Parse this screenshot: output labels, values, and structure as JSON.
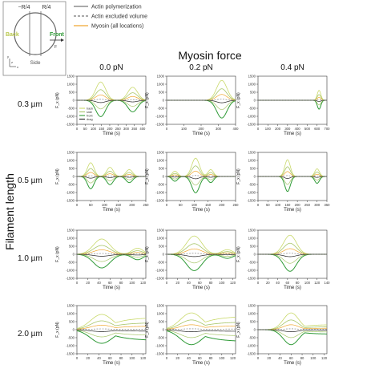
{
  "figure": {
    "column_header": "Myosin force",
    "row_header": "Filament length",
    "columns": [
      "0.0 pN",
      "0.2 pN",
      "0.4 pN"
    ],
    "rows": [
      "0.3 µm",
      "0.5 µm",
      "1.0 µm",
      "2.0 µm"
    ],
    "ylabel": "F_x (pN)",
    "xlabel": "Time (s)"
  },
  "schematic": {
    "back": "Back",
    "front": "Front",
    "minus_r4": "−R/4",
    "r4": "R/4",
    "side": "Side",
    "axis_y": "y",
    "axis_x": "x",
    "axis_z": "z",
    "force_label": "F"
  },
  "legend_top": [
    {
      "label": "Actin polymerization",
      "color": "#555555",
      "dash": "solid"
    },
    {
      "label": "Actin excluded volume",
      "color": "#555555",
      "dash": "dashed"
    },
    {
      "label": "Myosin (all locations)",
      "color": "#f0a830",
      "dash": "solid"
    }
  ],
  "legend_inset": [
    "back",
    "side",
    "front",
    "drag"
  ],
  "colors": {
    "back": "#c9d96a",
    "side": "#a8c66a",
    "front": "#2e9a36",
    "drag": "#222222",
    "myosin": "#f0a830",
    "actin": "#777777"
  },
  "chart_data": [
    {
      "type": "line",
      "row": 0,
      "col": 0,
      "xlim": [
        0,
        420
      ],
      "ylim": [
        -1500,
        1500
      ],
      "xticks": [
        0,
        50,
        100,
        150,
        200,
        250,
        300,
        350,
        400
      ],
      "yticks": [
        -1500,
        -1000,
        -500,
        0,
        500,
        1000,
        1500
      ],
      "events": [
        {
          "t": 145,
          "amp": 1200,
          "w": 30
        },
        {
          "t": 340,
          "amp": 850,
          "w": 30
        }
      ]
    },
    {
      "type": "line",
      "row": 0,
      "col": 1,
      "xlim": [
        0,
        400
      ],
      "ylim": [
        -1500,
        1500
      ],
      "xticks": [
        0,
        100,
        200,
        300,
        400
      ],
      "yticks": [
        -1500,
        -1000,
        -500,
        0,
        500,
        1000,
        1500
      ],
      "events": [
        {
          "t": 320,
          "amp": 1300,
          "w": 30
        }
      ]
    },
    {
      "type": "line",
      "row": 0,
      "col": 2,
      "xlim": [
        0,
        700
      ],
      "ylim": [
        -1500,
        1500
      ],
      "xticks": [
        0,
        100,
        200,
        300,
        400,
        500,
        600,
        700
      ],
      "yticks": [
        -1500,
        -1000,
        -500,
        0,
        500,
        1000,
        1500
      ],
      "events": [
        {
          "t": 620,
          "amp": 650,
          "w": 18
        }
      ]
    },
    {
      "type": "line",
      "row": 1,
      "col": 0,
      "xlim": [
        0,
        250
      ],
      "ylim": [
        -1500,
        1500
      ],
      "xticks": [
        0,
        50,
        100,
        150,
        200,
        250
      ],
      "yticks": [
        -1500,
        -1000,
        -500,
        0,
        500,
        1000,
        1500
      ],
      "events": [
        {
          "t": 50,
          "amp": 900,
          "w": 12
        },
        {
          "t": 120,
          "amp": 600,
          "w": 12
        },
        {
          "t": 190,
          "amp": 450,
          "w": 12
        }
      ]
    },
    {
      "type": "line",
      "row": 1,
      "col": 1,
      "xlim": [
        0,
        250
      ],
      "ylim": [
        -1500,
        1500
      ],
      "xticks": [
        0,
        50,
        100,
        150,
        200,
        250
      ],
      "yticks": [
        -1500,
        -1000,
        -500,
        0,
        500,
        1000,
        1500
      ],
      "events": [
        {
          "t": 30,
          "amp": 350,
          "w": 10
        },
        {
          "t": 105,
          "amp": 1200,
          "w": 14
        },
        {
          "t": 160,
          "amp": 450,
          "w": 10
        }
      ]
    },
    {
      "type": "line",
      "row": 1,
      "col": 2,
      "xlim": [
        0,
        350
      ],
      "ylim": [
        -1500,
        1500
      ],
      "xticks": [
        0,
        50,
        100,
        150,
        200,
        250,
        300,
        350
      ],
      "yticks": [
        -1500,
        -1000,
        -500,
        0,
        500,
        1000,
        1500
      ],
      "events": [
        {
          "t": 150,
          "amp": 1100,
          "w": 14
        },
        {
          "t": 300,
          "amp": 500,
          "w": 12
        }
      ]
    },
    {
      "type": "line",
      "row": 2,
      "col": 0,
      "xlim": [
        0,
        125
      ],
      "ylim": [
        -1500,
        1500
      ],
      "xticks": [
        0,
        20,
        40,
        60,
        80,
        100,
        120
      ],
      "yticks": [
        -1500,
        -1000,
        -500,
        0,
        500,
        1000,
        1500
      ],
      "events": [
        {
          "t": 45,
          "amp": 1000,
          "w": 15
        },
        {
          "t": 110,
          "amp": 400,
          "w": 10
        }
      ]
    },
    {
      "type": "line",
      "row": 2,
      "col": 1,
      "xlim": [
        0,
        125
      ],
      "ylim": [
        -1500,
        1500
      ],
      "xticks": [
        0,
        20,
        40,
        60,
        80,
        100,
        120
      ],
      "yticks": [
        -1500,
        -1000,
        -500,
        0,
        500,
        1000,
        1500
      ],
      "events": [
        {
          "t": 50,
          "amp": 1200,
          "w": 14
        },
        {
          "t": 110,
          "amp": 300,
          "w": 10
        }
      ]
    },
    {
      "type": "line",
      "row": 2,
      "col": 2,
      "xlim": [
        0,
        140
      ],
      "ylim": [
        -1500,
        1500
      ],
      "xticks": [
        0,
        20,
        40,
        60,
        80,
        100,
        120,
        140
      ],
      "yticks": [
        -1500,
        -1000,
        -500,
        0,
        500,
        1000,
        1500
      ],
      "events": [
        {
          "t": 65,
          "amp": 1250,
          "w": 13
        }
      ]
    },
    {
      "type": "line",
      "row": 3,
      "col": 0,
      "xlim": [
        0,
        125
      ],
      "ylim": [
        -1500,
        1500
      ],
      "xticks": [
        0,
        20,
        40,
        60,
        80,
        100,
        120
      ],
      "yticks": [
        -1500,
        -1000,
        -500,
        0,
        500,
        1000,
        1500
      ],
      "events": [
        {
          "t": 45,
          "amp": 1000,
          "w": 20,
          "sustain": 0.8
        }
      ]
    },
    {
      "type": "line",
      "row": 3,
      "col": 1,
      "xlim": [
        0,
        125
      ],
      "ylim": [
        -1500,
        1500
      ],
      "xticks": [
        0,
        20,
        40,
        60,
        80,
        100,
        120
      ],
      "yticks": [
        -1500,
        -1000,
        -500,
        0,
        500,
        1000,
        1500
      ],
      "events": [
        {
          "t": 45,
          "amp": 1100,
          "w": 20,
          "sustain": 0.8
        }
      ]
    },
    {
      "type": "line",
      "row": 3,
      "col": 2,
      "xlim": [
        0,
        125
      ],
      "ylim": [
        -1500,
        1500
      ],
      "xticks": [
        0,
        20,
        40,
        60,
        80,
        100,
        120
      ],
      "yticks": [
        -1500,
        -1000,
        -500,
        0,
        500,
        1000,
        1500
      ],
      "events": [
        {
          "t": 60,
          "amp": 1100,
          "w": 14,
          "sustain": 0.3
        }
      ]
    }
  ]
}
